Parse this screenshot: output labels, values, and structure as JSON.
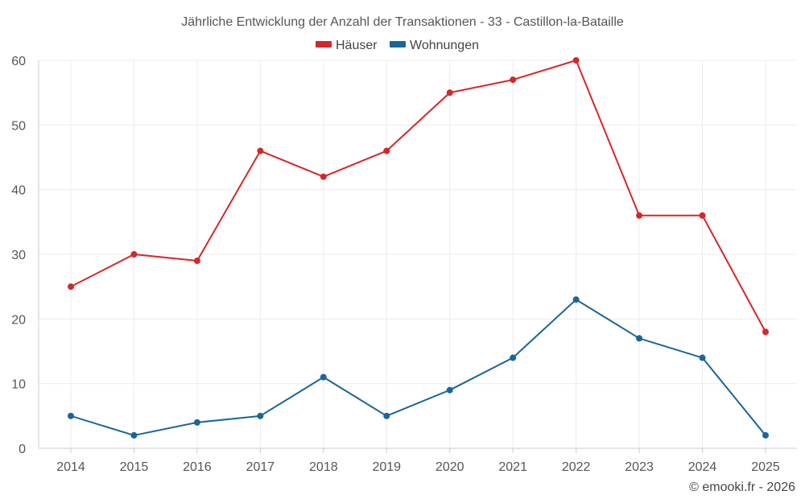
{
  "chart_data": {
    "type": "line",
    "title": "Jährliche Entwicklung der Anzahl der Transaktionen - 33 - Castillon-la-Bataille",
    "categories": [
      "2014",
      "2015",
      "2016",
      "2017",
      "2018",
      "2019",
      "2020",
      "2021",
      "2022",
      "2023",
      "2024",
      "2025"
    ],
    "series": [
      {
        "name": "Häuser",
        "color": "#d62728",
        "values": [
          25,
          30,
          29,
          46,
          42,
          46,
          55,
          57,
          60,
          36,
          36,
          18
        ]
      },
      {
        "name": "Wohnungen",
        "color": "#1a6699",
        "values": [
          5,
          2,
          4,
          5,
          11,
          5,
          9,
          14,
          23,
          17,
          14,
          2
        ]
      }
    ],
    "ylim": [
      0,
      60
    ],
    "yticks": [
      0,
      10,
      20,
      30,
      40,
      50,
      60
    ],
    "xlabel": "",
    "ylabel": "",
    "grid": true,
    "legend_position": "top-center"
  },
  "credit": "© emooki.fr - 2026"
}
